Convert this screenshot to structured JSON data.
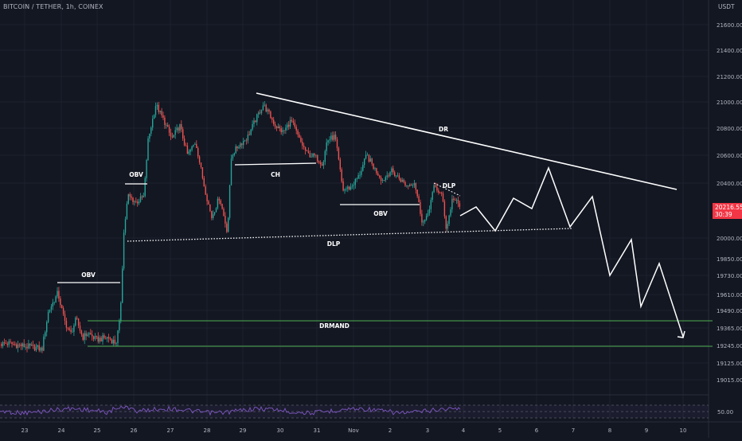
{
  "header": {
    "title": "BITCOIN / TETHER, 1h, COINEX",
    "unit": "USDT"
  },
  "price_tag": {
    "price": "20216.55",
    "timer": "30:39"
  },
  "colors": {
    "background": "#131722",
    "grid": "#1e222d",
    "up": "#26a69a",
    "down": "#ef5350",
    "annotation": "#ffffff",
    "demand_zone": "#4caf50",
    "rsi": "#7e57c2",
    "price_tag": "#f23645"
  },
  "chart_data": {
    "type": "candlestick",
    "y_axis": {
      "ticks": [
        21600,
        21400,
        21200,
        21000,
        20800,
        20600,
        20400,
        20000,
        19850,
        19730,
        19610,
        19490,
        19365,
        19245,
        19125,
        19015
      ],
      "tick_labels": [
        "21600.00",
        "21400.00",
        "21200.00",
        "21000.00",
        "20800.00",
        "20600.00",
        "20400.00",
        "20000.00",
        "19850.00",
        "19730.00",
        "19610.00",
        "19490.00",
        "19365.00",
        "19245.00",
        "19125.00",
        "19015.00"
      ]
    },
    "x_axis": {
      "tick_labels": [
        "23",
        "24",
        "25",
        "26",
        "27",
        "28",
        "29",
        "30",
        "31",
        "Nov",
        "2",
        "3",
        "4",
        "5",
        "6",
        "7",
        "8",
        "9",
        "10"
      ]
    },
    "last_price": 20216.55,
    "annotations": [
      {
        "label": "OBV",
        "level": 19700
      },
      {
        "label": "OBV",
        "level": 20380
      },
      {
        "label": "CH",
        "level": 20550
      },
      {
        "label": "OBV",
        "level": 20220
      },
      {
        "label": "DLP",
        "level": 20380
      },
      {
        "label": "DR"
      },
      {
        "label": "DLP"
      },
      {
        "label": "DRMAND",
        "range": [
          19245,
          19395
        ]
      }
    ],
    "rsi_panel": {
      "level_label": "50.00",
      "level": 50
    }
  }
}
